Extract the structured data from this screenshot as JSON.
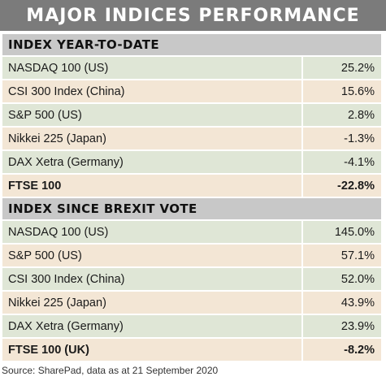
{
  "title": "MAJOR INDICES PERFORMANCE",
  "sections": [
    {
      "header": "INDEX YEAR-TO-DATE",
      "rows": [
        {
          "name": "NASDAQ 100 (US)",
          "value": "25.2%"
        },
        {
          "name": "CSI 300 Index (China)",
          "value": "15.6%"
        },
        {
          "name": "S&P 500 (US)",
          "value": "2.8%"
        },
        {
          "name": "Nikkei 225 (Japan)",
          "value": "-1.3%"
        },
        {
          "name": "DAX Xetra (Germany)",
          "value": "-4.1%"
        },
        {
          "name": "FTSE 100",
          "value": "-22.8%"
        }
      ]
    },
    {
      "header": "INDEX SINCE BREXIT VOTE",
      "rows": [
        {
          "name": "NASDAQ 100 (US)",
          "value": "145.0%"
        },
        {
          "name": "S&P 500 (US)",
          "value": "57.1%"
        },
        {
          "name": "CSI 300 Index (China)",
          "value": "52.0%"
        },
        {
          "name": "Nikkei 225 (Japan)",
          "value": "43.9%"
        },
        {
          "name": "DAX Xetra (Germany)",
          "value": "23.9%"
        },
        {
          "name": "FTSE 100 (UK)",
          "value": "-8.2%"
        }
      ]
    }
  ],
  "source": "Source: SharePad, data as at 21 September 2020",
  "colors": {
    "title_bg": "#7b7b7b",
    "header_bg": "#c8c8c8",
    "row_green": "#dfe6d6",
    "row_peach": "#f3e6d5"
  }
}
